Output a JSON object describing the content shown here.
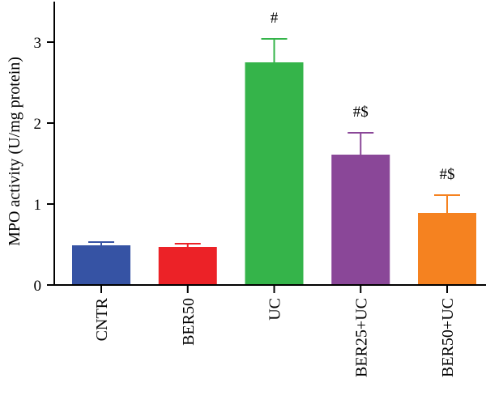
{
  "chart_data": {
    "type": "bar",
    "title": "",
    "xlabel": "",
    "ylabel": "MPO activity (U/mg protein)",
    "ylim": [
      0,
      3.5
    ],
    "yticks": [
      0,
      1,
      2,
      3
    ],
    "grid": false,
    "categories": [
      "CNTR",
      "BER50",
      "UC",
      "BER25+UC",
      "BER50+UC"
    ],
    "values": [
      0.49,
      0.47,
      2.75,
      1.61,
      0.89
    ],
    "errors": [
      0.04,
      0.04,
      0.29,
      0.27,
      0.22
    ],
    "annotations": [
      "",
      "",
      "#",
      "#$",
      "#$"
    ],
    "colors": [
      "#3653a4",
      "#ec2227",
      "#35b44a",
      "#8a4798",
      "#f58220"
    ]
  }
}
